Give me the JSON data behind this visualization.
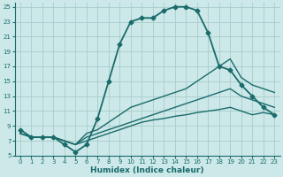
{
  "xlabel": "Humidex (Indice chaleur)",
  "bg_color": "#cce8e8",
  "grid_color": "#aacccc",
  "line_color": "#1a6b6b",
  "xlim": [
    -0.5,
    23.5
  ],
  "ylim": [
    5,
    25.5
  ],
  "yticks": [
    5,
    7,
    9,
    11,
    13,
    15,
    17,
    19,
    21,
    23,
    25
  ],
  "xticks": [
    0,
    1,
    2,
    3,
    4,
    5,
    6,
    7,
    8,
    9,
    10,
    11,
    12,
    13,
    14,
    15,
    16,
    17,
    18,
    19,
    20,
    21,
    22,
    23
  ],
  "lines": [
    {
      "x": [
        0,
        1,
        2,
        3,
        4,
        5,
        6,
        7,
        8,
        9,
        10,
        11,
        12,
        13,
        14,
        15,
        16,
        17,
        18,
        19,
        20,
        21,
        22,
        23
      ],
      "y": [
        8.0,
        7.5,
        7.5,
        7.5,
        7.0,
        6.5,
        7.0,
        7.5,
        8.0,
        8.5,
        9.0,
        9.5,
        9.8,
        10.0,
        10.3,
        10.5,
        10.8,
        11.0,
        11.2,
        11.5,
        11.0,
        10.5,
        10.8,
        10.5
      ],
      "style": "solid",
      "marker": null,
      "lw": 1.0
    },
    {
      "x": [
        0,
        1,
        2,
        3,
        4,
        5,
        6,
        7,
        8,
        9,
        10,
        11,
        12,
        13,
        14,
        15,
        16,
        17,
        18,
        19,
        20,
        21,
        22,
        23
      ],
      "y": [
        8.0,
        7.5,
        7.5,
        7.5,
        7.0,
        6.5,
        7.5,
        8.0,
        8.5,
        9.0,
        9.5,
        10.0,
        10.5,
        11.0,
        11.5,
        12.0,
        12.5,
        13.0,
        13.5,
        14.0,
        13.0,
        12.5,
        12.0,
        11.5
      ],
      "style": "solid",
      "marker": null,
      "lw": 1.0
    },
    {
      "x": [
        0,
        1,
        2,
        3,
        4,
        5,
        6,
        7,
        8,
        9,
        10,
        11,
        12,
        13,
        14,
        15,
        16,
        17,
        18,
        19,
        20,
        21,
        22,
        23
      ],
      "y": [
        8.0,
        7.5,
        7.5,
        7.5,
        7.0,
        6.5,
        8.0,
        8.5,
        9.5,
        10.5,
        11.5,
        12.0,
        12.5,
        13.0,
        13.5,
        14.0,
        15.0,
        16.0,
        17.0,
        18.0,
        15.5,
        14.5,
        14.0,
        13.5
      ],
      "style": "solid",
      "marker": null,
      "lw": 1.0
    },
    {
      "x": [
        0,
        1,
        2,
        3,
        4,
        5,
        6,
        7,
        8,
        9,
        10,
        11,
        12,
        13,
        14,
        15,
        16,
        17,
        18,
        19,
        20,
        21,
        22,
        23
      ],
      "y": [
        8.5,
        7.5,
        7.5,
        7.5,
        6.5,
        5.5,
        6.5,
        10.0,
        15.0,
        20.0,
        23.0,
        23.5,
        23.5,
        24.5,
        25.0,
        25.0,
        24.5,
        21.5,
        17.0,
        16.5,
        14.5,
        13.0,
        11.5,
        10.5
      ],
      "style": "solid",
      "marker": "D",
      "lw": 1.3
    }
  ]
}
